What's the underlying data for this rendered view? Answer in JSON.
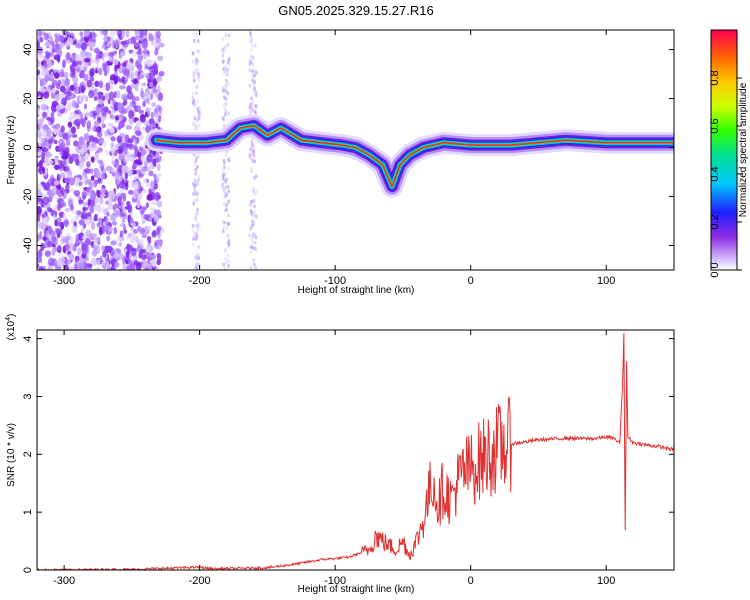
{
  "chart_data": [
    {
      "type": "heatmap",
      "title": "GN05.2025.329.15.27.R16",
      "xlabel": "Height of straight line (km)",
      "ylabel": "Frequency (Hz)",
      "xlim": [
        -320,
        150
      ],
      "ylim": [
        -50,
        48
      ],
      "xticks": [
        -300,
        -200,
        -100,
        0,
        100
      ],
      "xtick_labels": [
        "-300",
        "-200",
        "-100",
        "0",
        "100"
      ],
      "yticks": [
        -40,
        -20,
        0,
        20,
        40
      ],
      "ytick_labels": [
        "-40",
        "-20",
        "0",
        "20",
        "40"
      ],
      "colorbar": {
        "label": "Normalized spectral amplitude",
        "range": [
          0,
          1
        ],
        "ticks": [
          0.0,
          0.2,
          0.4,
          0.6,
          0.8
        ],
        "tick_labels": [
          "0.0",
          "0.2",
          "0.4",
          "0.6",
          "0.8"
        ],
        "colormap": "rainbow"
      },
      "ridge": [
        {
          "x": -232,
          "y": 3
        },
        {
          "x": -215,
          "y": 2
        },
        {
          "x": -195,
          "y": 2
        },
        {
          "x": -180,
          "y": 3
        },
        {
          "x": -170,
          "y": 8
        },
        {
          "x": -160,
          "y": 9
        },
        {
          "x": -150,
          "y": 5
        },
        {
          "x": -140,
          "y": 8
        },
        {
          "x": -125,
          "y": 3
        },
        {
          "x": -110,
          "y": 2
        },
        {
          "x": -95,
          "y": 1
        },
        {
          "x": -85,
          "y": 0
        },
        {
          "x": -75,
          "y": -3
        },
        {
          "x": -65,
          "y": -7
        },
        {
          "x": -58,
          "y": -16
        },
        {
          "x": -52,
          "y": -7
        },
        {
          "x": -45,
          "y": -3
        },
        {
          "x": -35,
          "y": 0
        },
        {
          "x": -20,
          "y": 2
        },
        {
          "x": 0,
          "y": 1
        },
        {
          "x": 30,
          "y": 1
        },
        {
          "x": 70,
          "y": 3
        },
        {
          "x": 100,
          "y": 2
        },
        {
          "x": 150,
          "y": 2
        }
      ]
    },
    {
      "type": "line",
      "title": "",
      "xlabel": "Height of straight line (km)",
      "ylabel": "SNR (10 * v/v)",
      "scale_label": "(x10",
      "scale_exp": "4",
      "scale_close": ")",
      "xlim": [
        -320,
        150
      ],
      "ylim": [
        0,
        4.15
      ],
      "xticks": [
        -300,
        -200,
        -100,
        0,
        100
      ],
      "xtick_labels": [
        "-300",
        "-200",
        "-100",
        "0",
        "100"
      ],
      "yticks": [
        0,
        1,
        2,
        3,
        4
      ],
      "ytick_labels": [
        "0",
        "1",
        "2",
        "3",
        "4"
      ],
      "color": "#e03030",
      "series": [
        {
          "name": "SNR",
          "points": [
            [
              -320,
              0.0
            ],
            [
              -250,
              0.01
            ],
            [
              -200,
              0.05
            ],
            [
              -190,
              0.02
            ],
            [
              -150,
              0.04
            ],
            [
              -130,
              0.1
            ],
            [
              -110,
              0.18
            ],
            [
              -90,
              0.22
            ],
            [
              -75,
              0.35
            ],
            [
              -70,
              0.6
            ],
            [
              -62,
              0.45
            ],
            [
              -55,
              0.35
            ],
            [
              -50,
              0.5
            ],
            [
              -45,
              0.25
            ],
            [
              -40,
              0.5
            ],
            [
              -35,
              0.85
            ],
            [
              -28,
              1.6
            ],
            [
              -24,
              1.1
            ],
            [
              -20,
              1.45
            ],
            [
              -15,
              1.2
            ],
            [
              -10,
              1.5
            ],
            [
              -5,
              1.7
            ],
            [
              0,
              1.75
            ],
            [
              10,
              1.95
            ],
            [
              20,
              2.1
            ],
            [
              30,
              2.18
            ],
            [
              50,
              2.25
            ],
            [
              70,
              2.28
            ],
            [
              90,
              2.27
            ],
            [
              100,
              2.3
            ],
            [
              105,
              2.28
            ],
            [
              110,
              2.2
            ],
            [
              112,
              3.2
            ],
            [
              113,
              4.1
            ],
            [
              114,
              0.7
            ],
            [
              115,
              3.6
            ],
            [
              116,
              2.3
            ],
            [
              120,
              2.2
            ],
            [
              130,
              2.16
            ],
            [
              140,
              2.13
            ],
            [
              150,
              2.08
            ]
          ]
        }
      ]
    }
  ]
}
